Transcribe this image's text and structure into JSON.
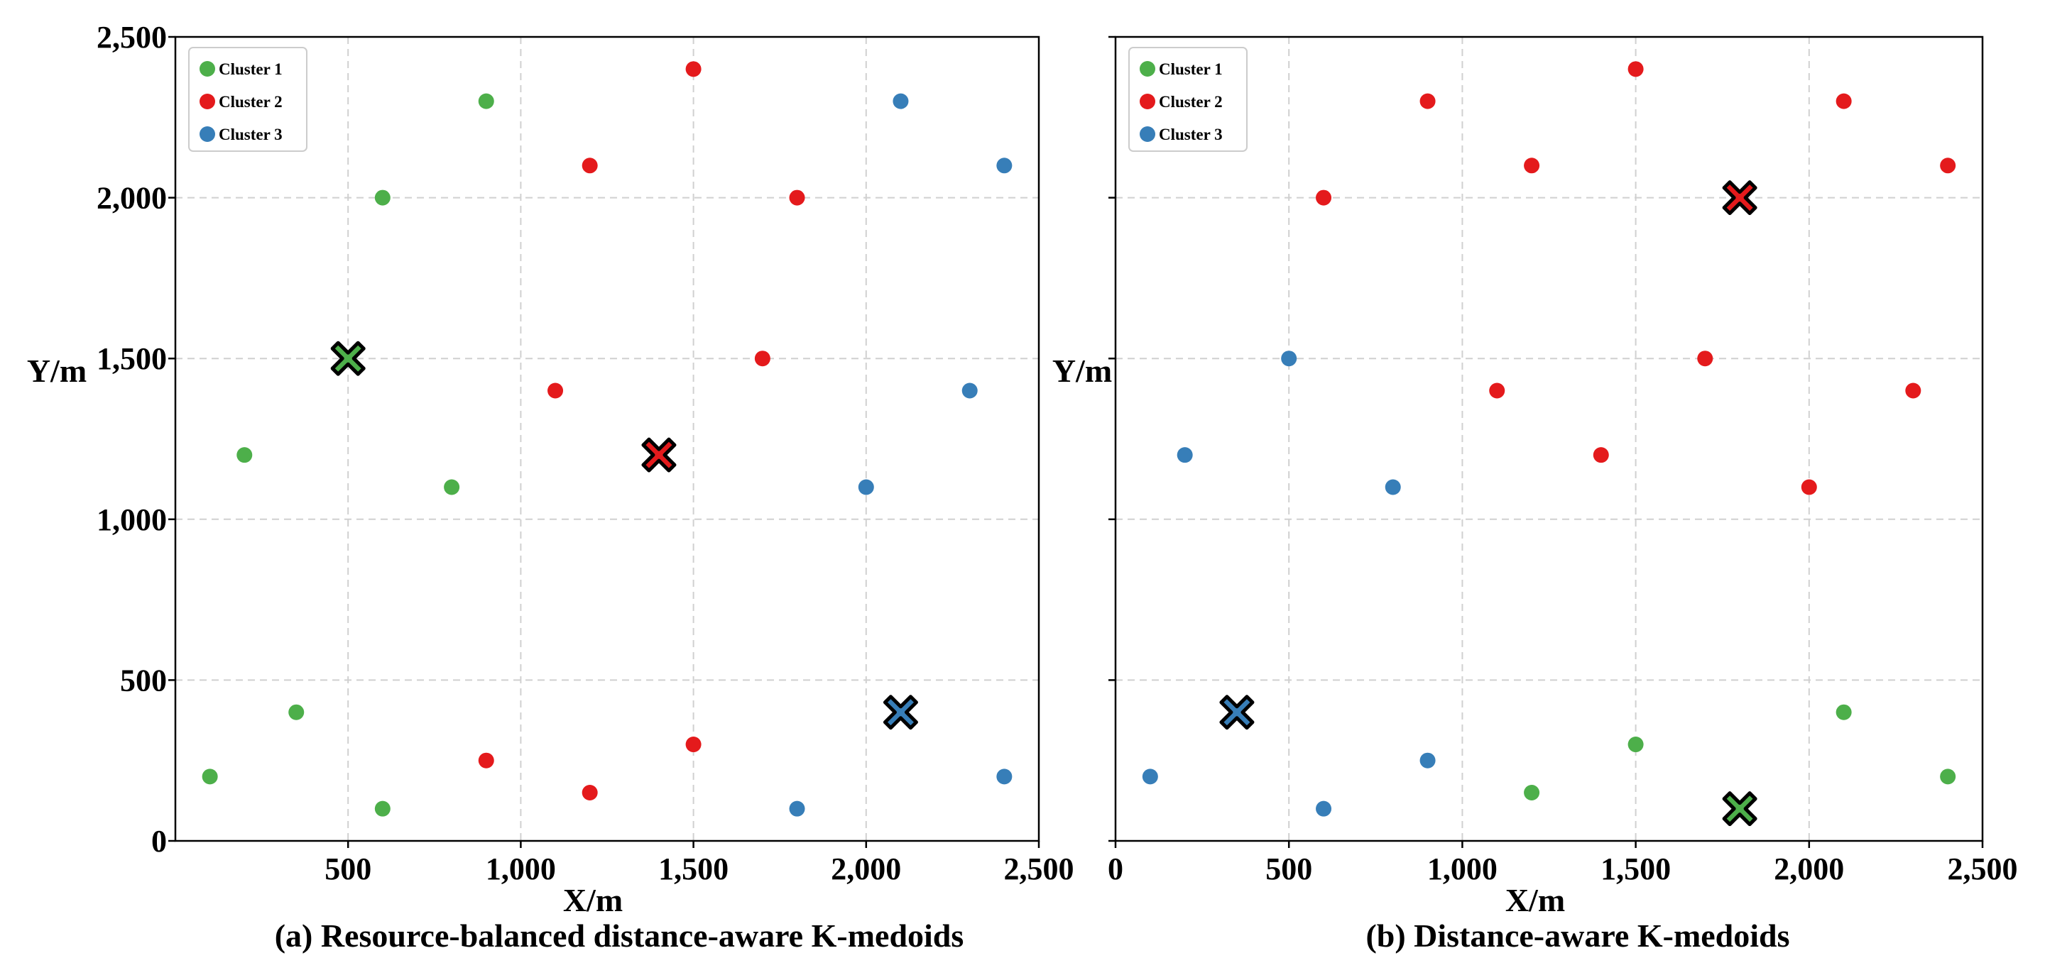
{
  "chart_data": [
    {
      "type": "scatter",
      "caption": "(a) Resource-balanced distance-aware K-medoids",
      "xlabel": "X/m",
      "ylabel": "Y/m",
      "xlim": [
        0,
        2500
      ],
      "ylim": [
        0,
        2500
      ],
      "xticks": [
        500,
        1000,
        1500,
        2000,
        2500
      ],
      "xtick_labels": [
        "500",
        "1,000",
        "1,500",
        "2,000",
        "2,500"
      ],
      "yticks": [
        0,
        500,
        1000,
        1500,
        2000,
        2500
      ],
      "ytick_labels": [
        "0",
        "500",
        "1,000",
        "1,500",
        "2,000",
        "2,500"
      ],
      "grid": true,
      "legend_position": "top-left",
      "series": [
        {
          "name": "Cluster 1",
          "color": "#4daf4a",
          "points": [
            [
              900,
              2300
            ],
            [
              600,
              2000
            ],
            [
              200,
              1200
            ],
            [
              800,
              1100
            ],
            [
              350,
              400
            ],
            [
              100,
              200
            ],
            [
              600,
              100
            ]
          ],
          "medoid": [
            500,
            1500
          ]
        },
        {
          "name": "Cluster 2",
          "color": "#e41a1c",
          "points": [
            [
              1500,
              2400
            ],
            [
              1200,
              2100
            ],
            [
              1800,
              2000
            ],
            [
              1700,
              1500
            ],
            [
              1100,
              1400
            ],
            [
              1500,
              300
            ],
            [
              900,
              250
            ],
            [
              1200,
              150
            ]
          ],
          "medoid": [
            1400,
            1200
          ]
        },
        {
          "name": "Cluster 3",
          "color": "#377eb8",
          "points": [
            [
              2100,
              2300
            ],
            [
              2400,
              2100
            ],
            [
              2300,
              1400
            ],
            [
              2000,
              1100
            ],
            [
              1800,
              100
            ],
            [
              2400,
              200
            ]
          ],
          "medoid": [
            2100,
            400
          ]
        }
      ]
    },
    {
      "type": "scatter",
      "caption": "(b) Distance-aware K-medoids",
      "xlabel": "X/m",
      "ylabel": "Y/m",
      "xlim": [
        0,
        2500
      ],
      "ylim": [
        0,
        2500
      ],
      "xticks": [
        0,
        500,
        1000,
        1500,
        2000,
        2500
      ],
      "xtick_labels": [
        "0",
        "500",
        "1,000",
        "1,500",
        "2,000",
        "2,500"
      ],
      "yticks": [
        0,
        500,
        1000,
        1500,
        2000,
        2500
      ],
      "ytick_labels": [],
      "grid": true,
      "legend_position": "top-left",
      "series": [
        {
          "name": "Cluster 1",
          "color": "#4daf4a",
          "points": [
            [
              1500,
              300
            ],
            [
              1200,
              150
            ],
            [
              2100,
              400
            ],
            [
              2400,
              200
            ]
          ],
          "medoid": [
            1800,
            100
          ]
        },
        {
          "name": "Cluster 2",
          "color": "#e41a1c",
          "points": [
            [
              1500,
              2400
            ],
            [
              900,
              2300
            ],
            [
              2100,
              2300
            ],
            [
              1200,
              2100
            ],
            [
              2400,
              2100
            ],
            [
              600,
              2000
            ],
            [
              1700,
              1500
            ],
            [
              1100,
              1400
            ],
            [
              2300,
              1400
            ],
            [
              1400,
              1200
            ],
            [
              2000,
              1100
            ]
          ],
          "medoid": [
            1800,
            2000
          ]
        },
        {
          "name": "Cluster 3",
          "color": "#377eb8",
          "points": [
            [
              500,
              1500
            ],
            [
              200,
              1200
            ],
            [
              800,
              1100
            ],
            [
              900,
              250
            ],
            [
              100,
              200
            ],
            [
              600,
              100
            ]
          ],
          "medoid": [
            350,
            400
          ]
        }
      ]
    }
  ]
}
